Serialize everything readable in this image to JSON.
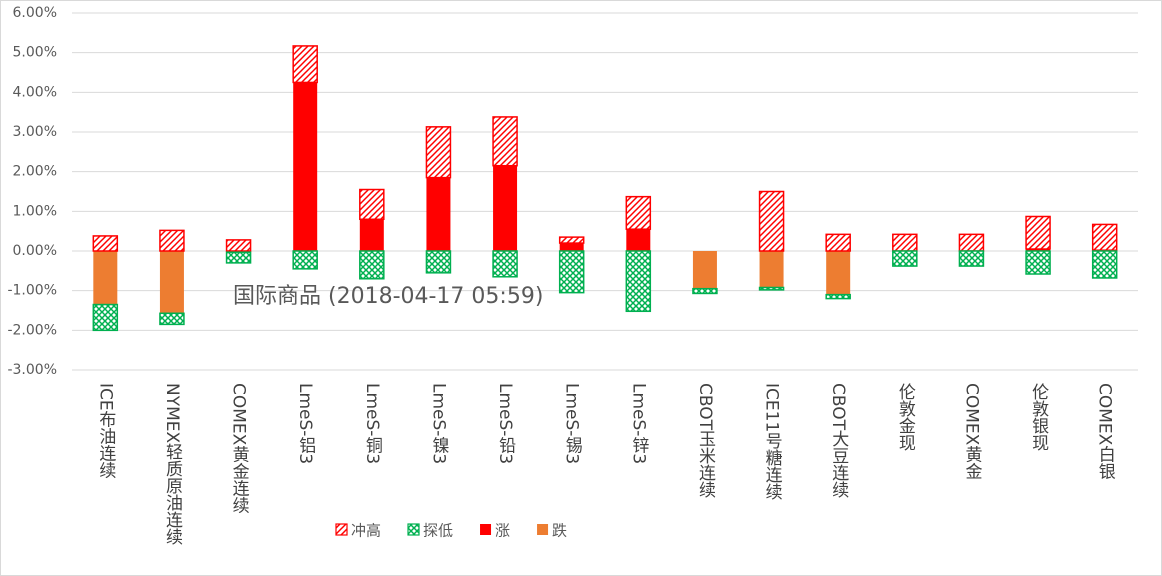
{
  "chart_data": {
    "type": "bar",
    "stacked": true,
    "title": "国际商品 (2018-04-17 05:59)",
    "categories": [
      "ICE布油连续",
      "NYMEX轻质原油连续",
      "COMEX黄金连续",
      "LmeS-铝3",
      "LmeS-铜3",
      "LmeS-镍3",
      "LmeS-铅3",
      "LmeS-锡3",
      "LmeS-锌3",
      "CBOT玉米连续",
      "ICE11号糖连续",
      "CBOT大豆连续",
      "伦敦金现",
      "COMEX黄金",
      "伦敦银现",
      "COMEX白银"
    ],
    "series": [
      {
        "name": "冲高",
        "color": "#ff0000",
        "fill": "hatch",
        "values": [
          0.38,
          0.52,
          0.28,
          0.92,
          0.75,
          1.28,
          1.23,
          0.15,
          0.82,
          0,
          1.5,
          0.42,
          0.42,
          0.42,
          0.82,
          0.65
        ]
      },
      {
        "name": "探低",
        "color": "#00b050",
        "fill": "crosshatch",
        "values": [
          -0.65,
          -0.28,
          -0.27,
          -0.45,
          -0.7,
          -0.55,
          -0.65,
          -1.05,
          -1.52,
          -0.12,
          -0.06,
          -0.1,
          -0.38,
          -0.38,
          -0.58,
          -0.68
        ]
      },
      {
        "name": "涨",
        "color": "#ff0000",
        "fill": "solid",
        "values": [
          0,
          0,
          0,
          4.25,
          0.8,
          1.85,
          2.15,
          0.2,
          0.55,
          0,
          0,
          0,
          0,
          0,
          0.05,
          0.02
        ]
      },
      {
        "name": "跌",
        "color": "#ed7d31",
        "fill": "solid",
        "values": [
          -1.35,
          -1.57,
          -0.03,
          0,
          0,
          0,
          0,
          0,
          0,
          -0.95,
          -0.92,
          -1.1,
          0,
          0,
          0,
          0
        ]
      }
    ],
    "ylim": [
      -3,
      6
    ],
    "yticks": [
      {
        "value": -3,
        "label": "-3.00%"
      },
      {
        "value": -2,
        "label": "-2.00%"
      },
      {
        "value": -1,
        "label": "-1.00%"
      },
      {
        "value": 0,
        "label": "0.00%"
      },
      {
        "value": 1,
        "label": "1.00%"
      },
      {
        "value": 2,
        "label": "2.00%"
      },
      {
        "value": 3,
        "label": "3.00%"
      },
      {
        "value": 4,
        "label": "4.00%"
      },
      {
        "value": 5,
        "label": "5.00%"
      },
      {
        "value": 6,
        "label": "6.00%"
      }
    ],
    "grid": true,
    "legend": "bottom"
  }
}
